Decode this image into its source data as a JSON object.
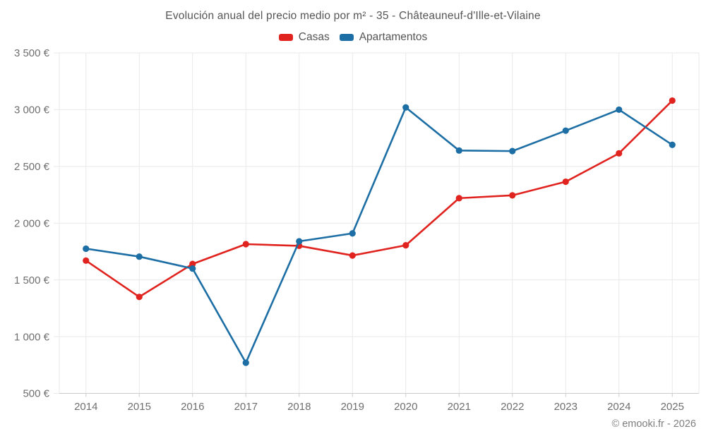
{
  "title": "Evolución anual del precio medio por m² - 35 - Châteauneuf-d'Ille-et-Vilaine",
  "legend": [
    {
      "label": "Casas",
      "color": "#e0231e"
    },
    {
      "label": "Apartamentos",
      "color": "#1c6ea4"
    }
  ],
  "footer": "© emooki.fr - 2026",
  "colors": {
    "grid": "#e9e9e9",
    "axis": "#cccccc",
    "tick_label": "#6f6f6f",
    "title_text": "#555555",
    "footer_text": "#7e7e7e",
    "background": "#ffffff"
  },
  "chart_data": {
    "type": "line",
    "title": "Evolución anual del precio medio por m² - 35 - Châteauneuf-d'Ille-et-Vilaine",
    "x": [
      2014,
      2015,
      2016,
      2017,
      2018,
      2019,
      2020,
      2021,
      2022,
      2023,
      2024,
      2025
    ],
    "series": [
      {
        "name": "Casas",
        "color": "#e0231e",
        "values": [
          1670,
          1350,
          1640,
          1815,
          1800,
          1715,
          1805,
          2220,
          2245,
          2365,
          2615,
          3080
        ]
      },
      {
        "name": "Apartamentos",
        "color": "#1c6ea4",
        "values": [
          1775,
          1705,
          1600,
          770,
          1840,
          1910,
          3020,
          2640,
          2635,
          2815,
          3000,
          2690
        ]
      }
    ],
    "xlabel": "",
    "ylabel": "",
    "ylim": [
      500,
      3500
    ],
    "ytick_step": 500,
    "ytick_labels": [
      "500 €",
      "1 000 €",
      "1 500 €",
      "2 000 €",
      "2 500 €",
      "3 000 €",
      "3 500 €"
    ],
    "currency": "€",
    "grid": true,
    "legend_position": "top",
    "marker": "circle"
  }
}
